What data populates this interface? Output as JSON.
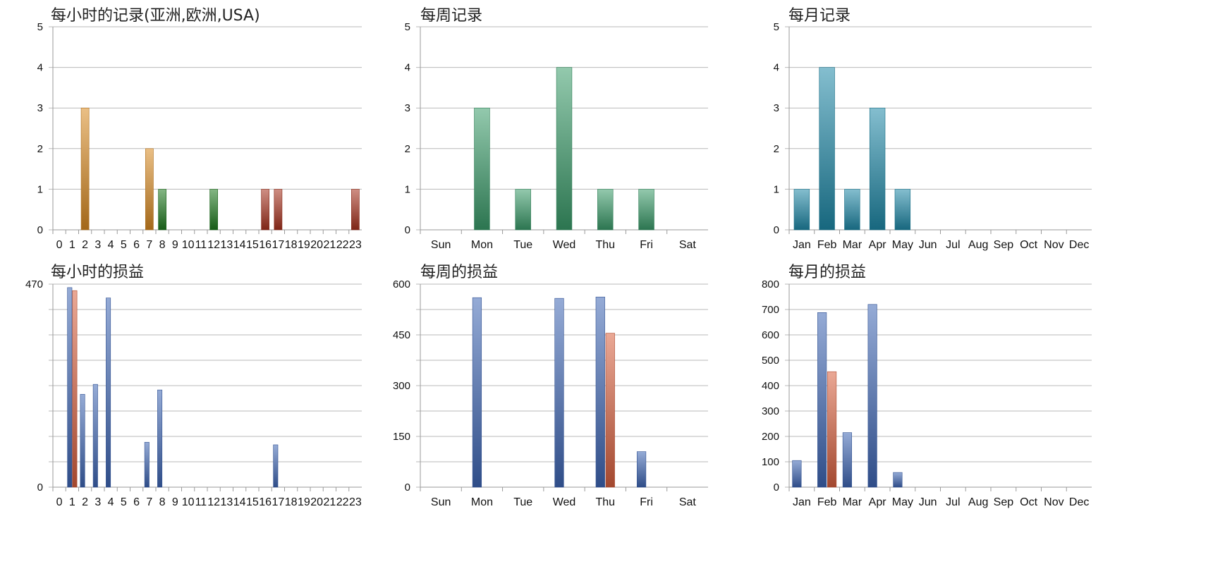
{
  "colors": {
    "orange": "#d98a22",
    "green": "#1f7a1f",
    "red": "#a8321e",
    "teal": "#3a9c6a",
    "cyan": "#1f89a8",
    "blue": "#3f66b5",
    "salmon": "#d9603f",
    "grid": "#b9b9b9",
    "axis": "#9a9a9a"
  },
  "charts": [
    {
      "title": "每小时的记录(亚洲,欧洲,USA)",
      "chart_data": {
        "type": "bar",
        "categories": [
          "0",
          "1",
          "2",
          "3",
          "4",
          "5",
          "6",
          "7",
          "8",
          "9",
          "10",
          "11",
          "12",
          "13",
          "14",
          "15",
          "16",
          "17",
          "18",
          "19",
          "20",
          "21",
          "22",
          "23"
        ],
        "series": [
          {
            "values": [
              0,
              0,
              3,
              0,
              0,
              0,
              0,
              2,
              0,
              0,
              0,
              0,
              0,
              0,
              0,
              0,
              0,
              0,
              0,
              0,
              0,
              0,
              0,
              0
            ],
            "color": "orange"
          },
          {
            "values": [
              0,
              0,
              0,
              0,
              0,
              0,
              0,
              0,
              1,
              0,
              0,
              0,
              1,
              0,
              0,
              0,
              0,
              0,
              0,
              0,
              0,
              0,
              0,
              0
            ],
            "color": "green"
          },
          {
            "values": [
              0,
              0,
              0,
              0,
              0,
              0,
              0,
              0,
              0,
              0,
              0,
              0,
              0,
              0,
              0,
              0,
              1,
              1,
              0,
              0,
              0,
              0,
              0,
              1
            ],
            "color": "red"
          }
        ],
        "ylim": [
          0,
          5
        ],
        "yticks": [
          "0",
          "1",
          "2",
          "3",
          "4",
          "5"
        ],
        "grid": true
      }
    },
    {
      "title": "每周记录",
      "chart_data": {
        "type": "bar",
        "categories": [
          "Sun",
          "Mon",
          "Tue",
          "Wed",
          "Thu",
          "Fri",
          "Sat"
        ],
        "series": [
          {
            "values": [
              0,
              3,
              1,
              4,
              1,
              1,
              0
            ],
            "color": "teal"
          }
        ],
        "ylim": [
          0,
          5
        ],
        "yticks": [
          "0",
          "1",
          "2",
          "3",
          "4",
          "5"
        ],
        "grid": true
      }
    },
    {
      "title": "每月记录",
      "chart_data": {
        "type": "bar",
        "categories": [
          "Jan",
          "Feb",
          "Mar",
          "Apr",
          "May",
          "Jun",
          "Jul",
          "Aug",
          "Sep",
          "Oct",
          "Nov",
          "Dec"
        ],
        "series": [
          {
            "values": [
              1,
              4,
              1,
              3,
              1,
              0,
              0,
              0,
              0,
              0,
              0,
              0
            ],
            "color": "cyan"
          }
        ],
        "ylim": [
          0,
          5
        ],
        "yticks": [
          "0",
          "1",
          "2",
          "3",
          "4",
          "5"
        ],
        "grid": true
      }
    },
    {
      "title": "每小时的损益",
      "chart_data": {
        "type": "bar",
        "categories": [
          "0",
          "1",
          "2",
          "3",
          "4",
          "5",
          "6",
          "7",
          "8",
          "9",
          "10",
          "11",
          "12",
          "13",
          "14",
          "15",
          "16",
          "17",
          "18",
          "19",
          "20",
          "21",
          "22",
          "23"
        ],
        "series": [
          {
            "values": [
              0,
              462,
              215,
              238,
              438,
              0,
              0,
              104,
              225,
              0,
              0,
              0,
              0,
              0,
              0,
              0,
              0,
              98,
              0,
              0,
              0,
              0,
              0,
              0
            ],
            "color": "blue"
          },
          {
            "values": [
              0,
              455,
              0,
              0,
              0,
              0,
              0,
              0,
              0,
              0,
              0,
              0,
              0,
              0,
              0,
              0,
              0,
              0,
              0,
              0,
              0,
              0,
              0,
              0
            ],
            "color": "salmon"
          }
        ],
        "ylim": [
          0,
          470
        ],
        "yticks": [
          "0",
          "",
          "",
          "",
          "",
          "",
          "",
          "",
          "470"
        ],
        "grid": true
      }
    },
    {
      "title": "每周的损益",
      "chart_data": {
        "type": "bar",
        "categories": [
          "Sun",
          "Mon",
          "Tue",
          "Wed",
          "Thu",
          "Fri",
          "Sat"
        ],
        "series": [
          {
            "values": [
              0,
              560,
              0,
              558,
              562,
              105,
              0
            ],
            "color": "blue"
          },
          {
            "values": [
              0,
              0,
              0,
              0,
              455,
              0,
              0
            ],
            "color": "salmon"
          }
        ],
        "ylim": [
          0,
          600
        ],
        "yticks": [
          "0",
          "",
          "150",
          "",
          "300",
          "",
          "450",
          "",
          "600"
        ],
        "grid": true
      }
    },
    {
      "title": "每月的损益",
      "chart_data": {
        "type": "bar",
        "categories": [
          "Jan",
          "Feb",
          "Mar",
          "Apr",
          "May",
          "Jun",
          "Jul",
          "Aug",
          "Sep",
          "Oct",
          "Nov",
          "Dec"
        ],
        "series": [
          {
            "values": [
              105,
              688,
              215,
              720,
              58,
              0,
              0,
              0,
              0,
              0,
              0,
              0
            ],
            "color": "blue"
          },
          {
            "values": [
              0,
              455,
              0,
              0,
              0,
              0,
              0,
              0,
              0,
              0,
              0,
              0
            ],
            "color": "salmon"
          }
        ],
        "ylim": [
          0,
          800
        ],
        "yticks": [
          "0",
          "100",
          "200",
          "300",
          "400",
          "500",
          "600",
          "700",
          "800"
        ],
        "grid": true
      }
    }
  ]
}
